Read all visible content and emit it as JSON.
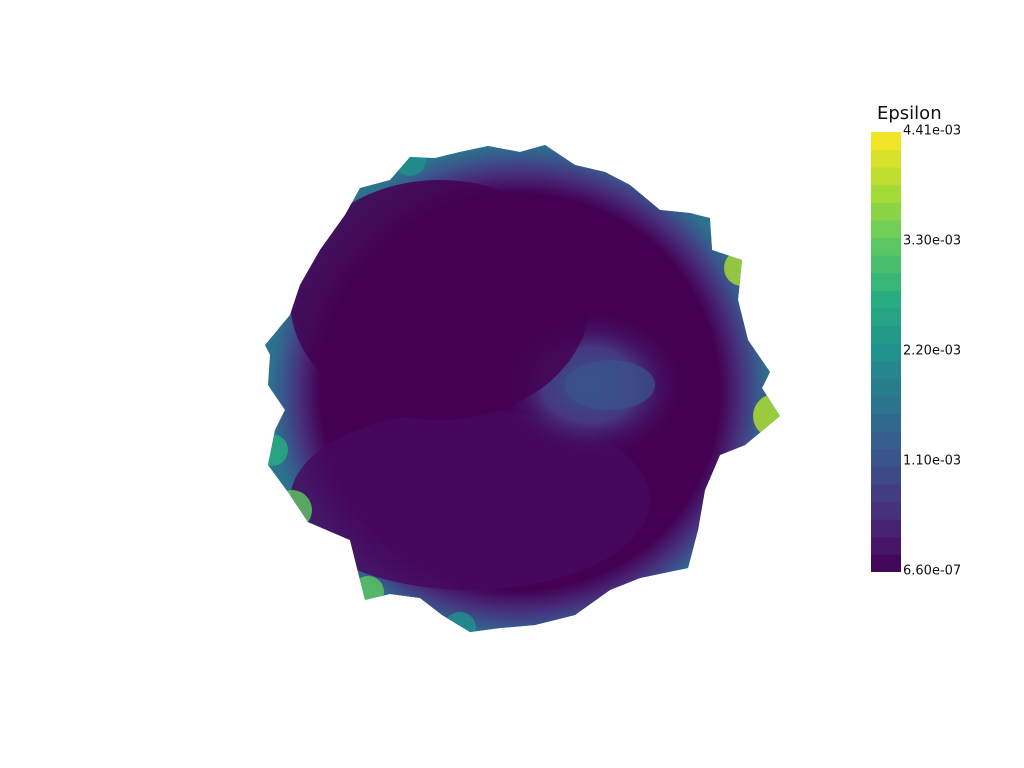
{
  "scalar_bar": {
    "title": "Epsilon",
    "tick_labels": [
      "4.41e-03",
      "3.30e-03",
      "2.20e-03",
      "1.10e-03",
      "6.60e-07"
    ],
    "range": [
      6.6e-07,
      0.00441
    ],
    "num_color_bands": 25,
    "colormap": "viridis",
    "colormap_stops": [
      "#440154",
      "#472d7b",
      "#3b528b",
      "#2c728e",
      "#21918c",
      "#28ae80",
      "#5ec962",
      "#addc30",
      "#fde725"
    ]
  },
  "background_color": "#ffffff",
  "field": {
    "name": "Epsilon",
    "description_values": {
      "interior": 6.6e-07,
      "center_right_patch": 0.0012,
      "boundary_peaks": 0.00441
    }
  }
}
